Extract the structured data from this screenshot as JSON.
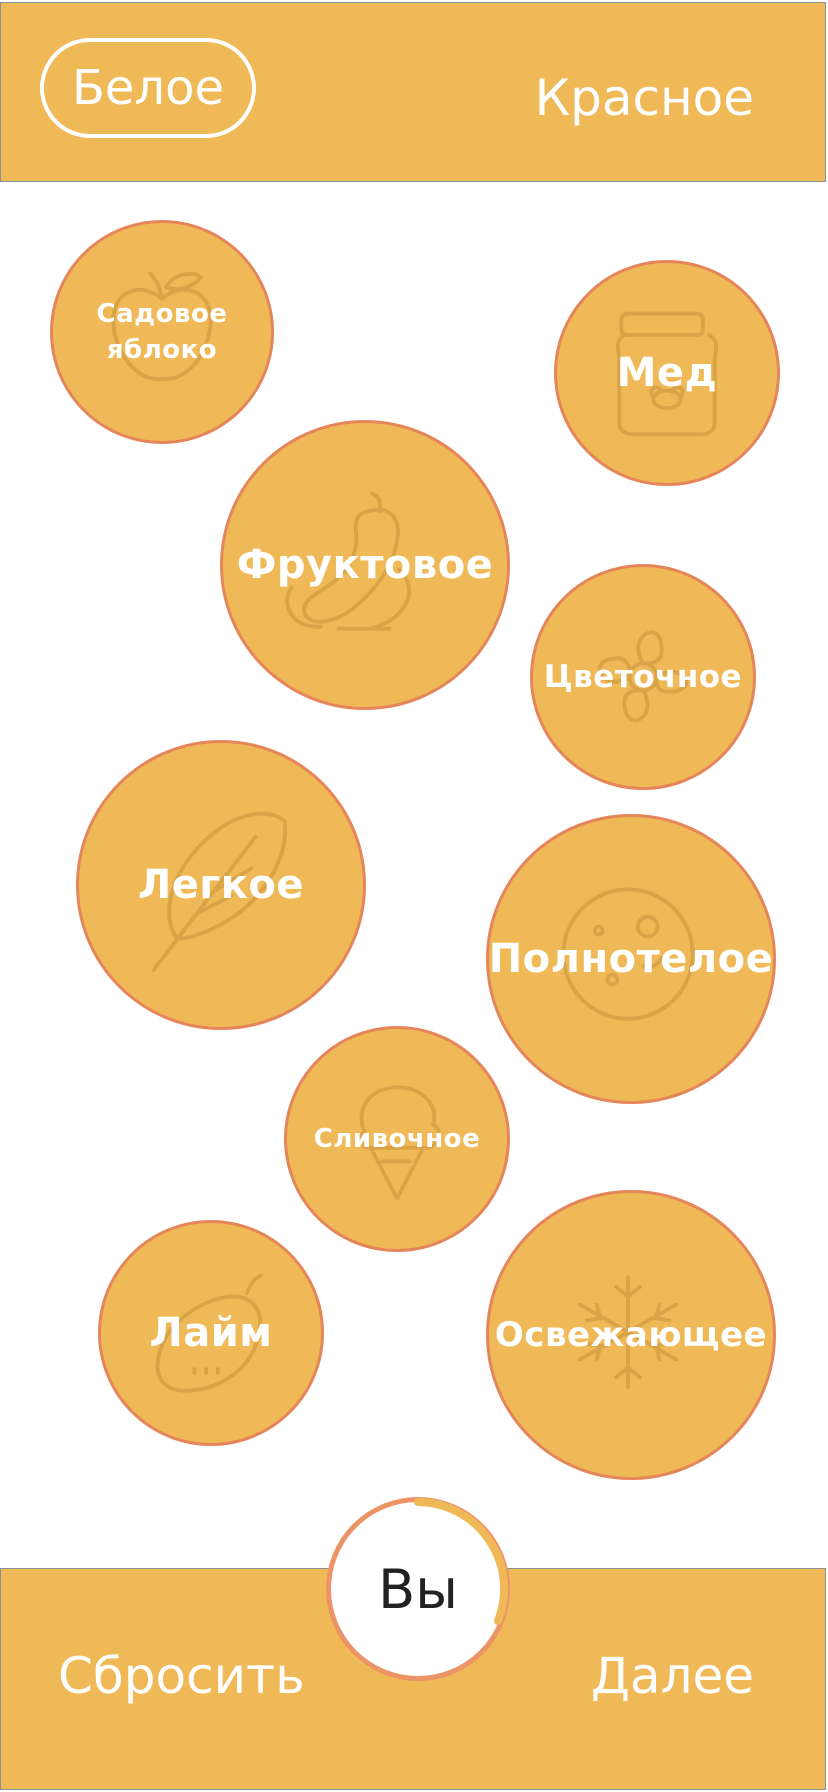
{
  "header": {
    "white_label": "Белое",
    "red_label": "Красное"
  },
  "bubbles": [
    {
      "label": "Садовое яблоко",
      "icon": "apple-icon"
    },
    {
      "label": "Мед",
      "icon": "honey-jar-icon"
    },
    {
      "label": "Фруктовое",
      "icon": "fruits-icon"
    },
    {
      "label": "Цветочное",
      "icon": "flower-icon"
    },
    {
      "label": "Легкое",
      "icon": "feather-icon"
    },
    {
      "label": "Полнотелое",
      "icon": "moon-icon"
    },
    {
      "label": "Сливочное",
      "icon": "ice-cream-icon"
    },
    {
      "label": "Лайм",
      "icon": "lime-icon"
    },
    {
      "label": "Освежающее",
      "icon": "snowflake-icon"
    }
  ],
  "footer": {
    "reset_label": "Сбросить",
    "next_label": "Далее",
    "you_label": "Вы"
  },
  "colors": {
    "accent": "#F0B957",
    "border": "#E5855A",
    "text": "#FFFFFF"
  }
}
